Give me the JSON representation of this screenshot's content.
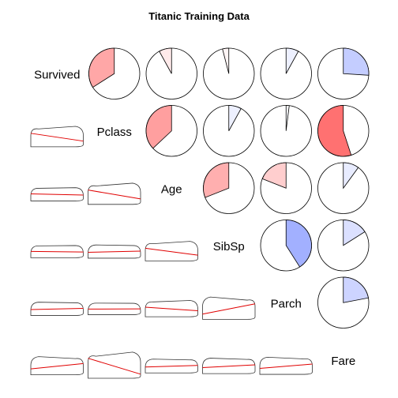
{
  "chart_data": {
    "type": "corrgram",
    "title": "Titanic Training Data",
    "variables": [
      "Survived",
      "Pclass",
      "Age",
      "SibSp",
      "Parch",
      "Fare"
    ],
    "upper_panel": "pie",
    "lower_panel": "ellipse-with-smoother",
    "color_scale": {
      "negative": "#ff0000",
      "positive": "#2040ff",
      "neutral": "#ffffff"
    },
    "correlations": [
      {
        "row": "Survived",
        "col": "Pclass",
        "r": -0.34
      },
      {
        "row": "Survived",
        "col": "Age",
        "r": -0.08
      },
      {
        "row": "Survived",
        "col": "SibSp",
        "r": -0.04
      },
      {
        "row": "Survived",
        "col": "Parch",
        "r": 0.08
      },
      {
        "row": "Survived",
        "col": "Fare",
        "r": 0.26
      },
      {
        "row": "Pclass",
        "col": "Age",
        "r": -0.37
      },
      {
        "row": "Pclass",
        "col": "SibSp",
        "r": 0.08
      },
      {
        "row": "Pclass",
        "col": "Parch",
        "r": 0.02
      },
      {
        "row": "Pclass",
        "col": "Fare",
        "r": -0.55
      },
      {
        "row": "Age",
        "col": "SibSp",
        "r": -0.31
      },
      {
        "row": "Age",
        "col": "Parch",
        "r": -0.19
      },
      {
        "row": "Age",
        "col": "Fare",
        "r": 0.1
      },
      {
        "row": "SibSp",
        "col": "Parch",
        "r": 0.41
      },
      {
        "row": "SibSp",
        "col": "Fare",
        "r": 0.16
      },
      {
        "row": "Parch",
        "col": "Fare",
        "r": 0.22
      }
    ]
  }
}
